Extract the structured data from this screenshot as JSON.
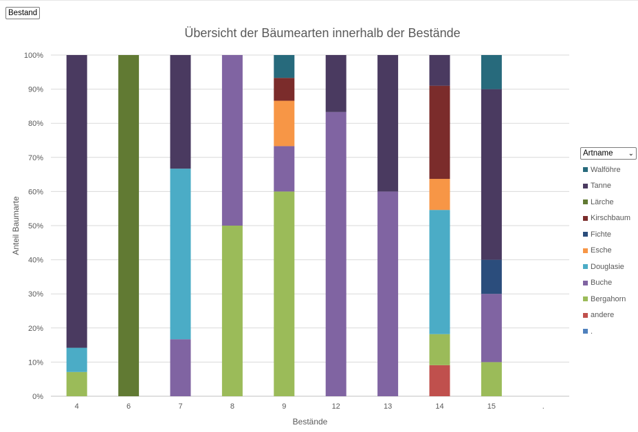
{
  "filter_button": {
    "label": "Bestand"
  },
  "legend": {
    "dropdown_label": "Artname",
    "items": [
      {
        "label": "Walföhre",
        "color": "#276A7C"
      },
      {
        "label": "Tanne",
        "color": "#4A3A60"
      },
      {
        "label": "Lärche",
        "color": "#617A33"
      },
      {
        "label": "Kirschbaum",
        "color": "#7B2C2B"
      },
      {
        "label": "Fichte",
        "color": "#2B4D7C"
      },
      {
        "label": "Esche",
        "color": "#F79646"
      },
      {
        "label": "Douglasie",
        "color": "#4BACC6"
      },
      {
        "label": "Buche",
        "color": "#8064A2"
      },
      {
        "label": "Bergahorn",
        "color": "#9BBB59"
      },
      {
        "label": "andere",
        "color": "#C0504D"
      },
      {
        "label": ".",
        "color": "#4F81BD"
      }
    ]
  },
  "chart_data": {
    "type": "bar",
    "stacked": true,
    "percent_stacked": true,
    "title": "Übersicht der Bäumearten innerhalb der Bestände",
    "xlabel": "Bestände",
    "ylabel": "Anteil Baumarte",
    "categories": [
      "4",
      "6",
      "7",
      "8",
      "9",
      "12",
      "13",
      "14",
      "15",
      "."
    ],
    "yticks": [
      "0%",
      "10%",
      "20%",
      "30%",
      "40%",
      "50%",
      "60%",
      "70%",
      "80%",
      "90%",
      "100%"
    ],
    "ylim": [
      0,
      100
    ],
    "grid": true,
    "legend_position": "right",
    "series": [
      {
        "name": ".",
        "color": "#4F81BD",
        "values": [
          0,
          0,
          0,
          0,
          0,
          0,
          0,
          0,
          0,
          0
        ]
      },
      {
        "name": "andere",
        "color": "#C0504D",
        "values": [
          0,
          0,
          0,
          0,
          0,
          0,
          0,
          9.1,
          0,
          0
        ]
      },
      {
        "name": "Bergahorn",
        "color": "#9BBB59",
        "values": [
          7.1,
          0,
          0,
          50,
          60,
          0,
          0,
          9.1,
          10,
          0
        ]
      },
      {
        "name": "Buche",
        "color": "#8064A2",
        "values": [
          0,
          0,
          16.7,
          50,
          13.3,
          83.3,
          60,
          0,
          20,
          0
        ]
      },
      {
        "name": "Douglasie",
        "color": "#4BACC6",
        "values": [
          7.1,
          0,
          50,
          0,
          0,
          0,
          0,
          36.4,
          0,
          0
        ]
      },
      {
        "name": "Esche",
        "color": "#F79646",
        "values": [
          0,
          0,
          0,
          0,
          13.3,
          0,
          0,
          9.1,
          0,
          0
        ]
      },
      {
        "name": "Fichte",
        "color": "#2B4D7C",
        "values": [
          0,
          0,
          0,
          0,
          0,
          0,
          0,
          0,
          10,
          0
        ]
      },
      {
        "name": "Kirschbaum",
        "color": "#7B2C2B",
        "values": [
          0,
          0,
          0,
          0,
          6.7,
          0,
          0,
          27.3,
          0,
          0
        ]
      },
      {
        "name": "Lärche",
        "color": "#617A33",
        "values": [
          0,
          100,
          0,
          0,
          0,
          0,
          0,
          0,
          0,
          0
        ]
      },
      {
        "name": "Tanne",
        "color": "#4A3A60",
        "values": [
          85.8,
          0,
          33.3,
          0,
          0,
          16.7,
          40,
          9.0,
          50,
          0
        ]
      },
      {
        "name": "Walföhre",
        "color": "#276A7C",
        "values": [
          0,
          0,
          0,
          0,
          6.7,
          0,
          0,
          0,
          10,
          0
        ]
      }
    ]
  }
}
